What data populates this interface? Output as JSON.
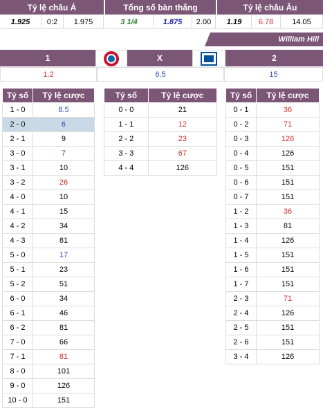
{
  "header": {
    "groups": [
      {
        "title": "Tỷ lệ châu Á",
        "values": [
          {
            "text": "1.925",
            "color": "#000000",
            "emphasis": true
          },
          {
            "text": "0:2",
            "color": "#000000"
          },
          {
            "text": "1.975",
            "color": "#000000"
          }
        ]
      },
      {
        "title": "Tổng số bàn thắng",
        "values": [
          {
            "text": "3 1/4",
            "color": "#2e7d32",
            "emphasis": true
          },
          {
            "text": "1.875",
            "color": "#1a1aa6",
            "emphasis": true
          },
          {
            "text": "2.00",
            "color": "#000000"
          }
        ]
      },
      {
        "title": "Tỷ lệ châu Âu",
        "values": [
          {
            "text": "1.19",
            "color": "#000000",
            "emphasis": true
          },
          {
            "text": "6.78",
            "color": "#d32f2f"
          },
          {
            "text": "14.05",
            "color": "#000000"
          }
        ]
      }
    ]
  },
  "bookmaker": "William Hill",
  "outcomes": [
    {
      "label": "1",
      "odds": "1.2",
      "color": "#d32f2f"
    },
    {
      "label": "X",
      "odds": "6.5",
      "color": "#2a4fb8"
    },
    {
      "label": "2",
      "odds": "15",
      "color": "#2a4fb8"
    }
  ],
  "columns": [
    "Tỷ số",
    "Tỷ lệ cược"
  ],
  "tables": [
    {
      "rows": [
        [
          "1 - 0",
          "8.5",
          "#2a4fb8"
        ],
        [
          "2 - 0",
          "6",
          "#2a4fb8",
          true
        ],
        [
          "2 - 1",
          "9"
        ],
        [
          "3 - 0",
          "7",
          "#2a4fb8"
        ],
        [
          "3 - 1",
          "10"
        ],
        [
          "3 - 2",
          "26",
          "#d32f2f"
        ],
        [
          "4 - 0",
          "10"
        ],
        [
          "4 - 1",
          "15"
        ],
        [
          "4 - 2",
          "34"
        ],
        [
          "4 - 3",
          "81"
        ],
        [
          "5 - 0",
          "17",
          "#2a4fb8"
        ],
        [
          "5 - 1",
          "23"
        ],
        [
          "5 - 2",
          "51"
        ],
        [
          "6 - 0",
          "34"
        ],
        [
          "6 - 1",
          "46"
        ],
        [
          "6 - 2",
          "81"
        ],
        [
          "7 - 0",
          "66"
        ],
        [
          "7 - 1",
          "81",
          "#d32f2f"
        ],
        [
          "8 - 0",
          "101"
        ],
        [
          "9 - 0",
          "126"
        ],
        [
          "10 - 0",
          "151"
        ]
      ]
    },
    {
      "rows": [
        [
          "0 - 0",
          "21"
        ],
        [
          "1 - 1",
          "12",
          "#d32f2f"
        ],
        [
          "2 - 2",
          "23",
          "#d32f2f"
        ],
        [
          "3 - 3",
          "67",
          "#d32f2f"
        ],
        [
          "4 - 4",
          "126"
        ]
      ]
    },
    {
      "rows": [
        [
          "0 - 1",
          "36",
          "#d32f2f"
        ],
        [
          "0 - 2",
          "71",
          "#d32f2f"
        ],
        [
          "0 - 3",
          "126",
          "#d32f2f"
        ],
        [
          "0 - 4",
          "126"
        ],
        [
          "0 - 5",
          "151"
        ],
        [
          "0 - 6",
          "151"
        ],
        [
          "0 - 7",
          "151"
        ],
        [
          "1 - 2",
          "36",
          "#d32f2f"
        ],
        [
          "1 - 3",
          "81"
        ],
        [
          "1 - 4",
          "126"
        ],
        [
          "1 - 5",
          "151"
        ],
        [
          "1 - 6",
          "151"
        ],
        [
          "1 - 7",
          "151"
        ],
        [
          "2 - 3",
          "71",
          "#d32f2f"
        ],
        [
          "2 - 4",
          "126"
        ],
        [
          "2 - 5",
          "151"
        ],
        [
          "2 - 6",
          "151"
        ],
        [
          "3 - 4",
          "126"
        ]
      ]
    }
  ]
}
